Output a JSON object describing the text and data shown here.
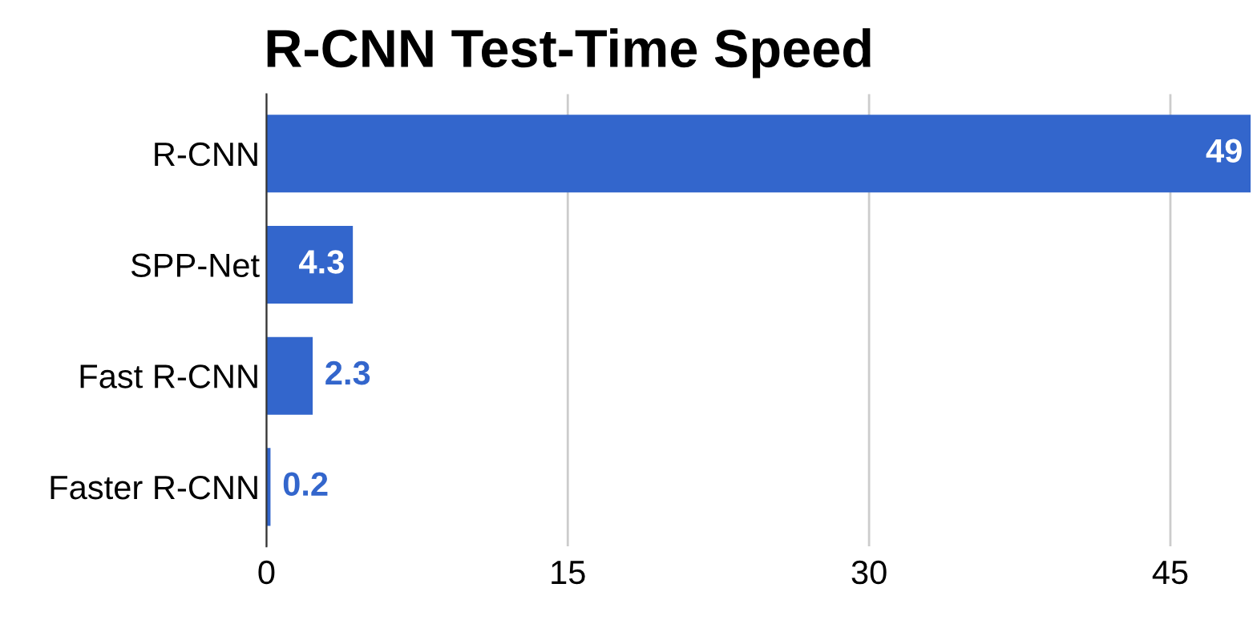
{
  "chart_data": {
    "type": "bar",
    "orientation": "horizontal",
    "title": "R-CNN Test-Time Speed",
    "categories": [
      "R-CNN",
      "SPP-Net",
      "Fast R-CNN",
      "Faster R-CNN"
    ],
    "values": [
      49,
      4.3,
      2.3,
      0.2
    ],
    "color": "#3366cc",
    "data_labels": true,
    "xlim": [
      0,
      49
    ],
    "xticks": [
      0,
      15,
      30,
      45
    ],
    "grid": "x"
  }
}
